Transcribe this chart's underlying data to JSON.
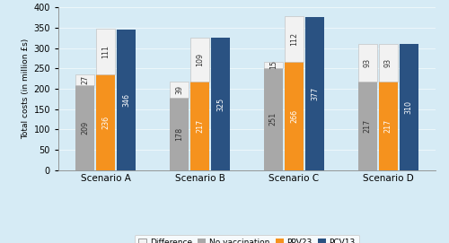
{
  "scenarios": [
    "Scenario A",
    "Scenario B",
    "Scenario C",
    "Scenario D"
  ],
  "no_vax_base": [
    209,
    178,
    251,
    217
  ],
  "no_vax_diff": [
    27,
    39,
    15,
    93
  ],
  "ppv23_base": [
    236,
    217,
    266,
    217
  ],
  "ppv23_diff": [
    111,
    109,
    112,
    93
  ],
  "pcv13": [
    346,
    325,
    377,
    310
  ],
  "bar_labels_novax": [
    "209",
    "178",
    "251",
    "217"
  ],
  "bar_labels_novax_diff": [
    "27",
    "39",
    "15",
    "93"
  ],
  "bar_labels_ppv23": [
    "236",
    "217",
    "266",
    "217"
  ],
  "bar_labels_ppv23_diff": [
    "111",
    "109",
    "112",
    "93"
  ],
  "bar_labels_pcv13": [
    "346",
    "325",
    "377",
    "310"
  ],
  "color_novax": "#a8a8a8",
  "color_diff": "#f2f2f2",
  "color_ppv23": "#f5921e",
  "color_pcv13": "#2a5282",
  "color_bg": "#d6ebf5",
  "ylabel": "Total costs (in million £s)",
  "ylim": [
    0,
    400
  ],
  "yticks": [
    0,
    50,
    100,
    150,
    200,
    250,
    300,
    350,
    400
  ],
  "legend_labels": [
    "Difference",
    "No vaccination",
    "PPV23",
    "PCV13"
  ],
  "bar_width": 0.22
}
